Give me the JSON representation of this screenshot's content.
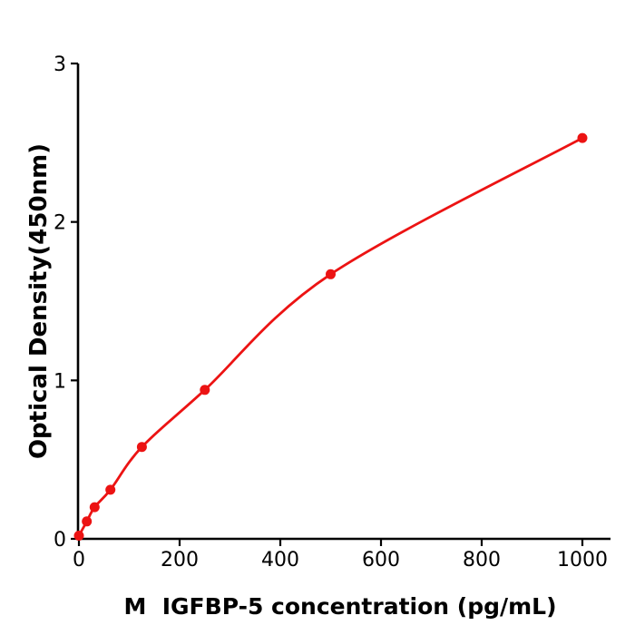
{
  "figure": {
    "background": "#ffffff",
    "axis_color": "#000000",
    "accent_color": "#ec1313"
  },
  "chart_data": {
    "type": "line",
    "title": "",
    "xlabel": "M  IGFBP-5 concentration (pg/mL)",
    "ylabel": "Optical Density(450nm)",
    "x": [
      0,
      15.6,
      31.25,
      62.5,
      125,
      250,
      500,
      1000
    ],
    "y": [
      0.02,
      0.11,
      0.2,
      0.31,
      0.58,
      0.94,
      1.67,
      2.53
    ],
    "x_ticks": [
      0,
      200,
      400,
      600,
      800,
      1000
    ],
    "y_ticks": [
      0,
      1,
      2,
      3
    ],
    "xlim": [
      0,
      1060
    ],
    "ylim": [
      0,
      3
    ],
    "grid": false,
    "legend": false,
    "marker": "circle",
    "marker_radius": 5.5,
    "line_color": "#ec1313",
    "line_width": 2.8,
    "curve_style": "smooth saturating fit through points"
  }
}
